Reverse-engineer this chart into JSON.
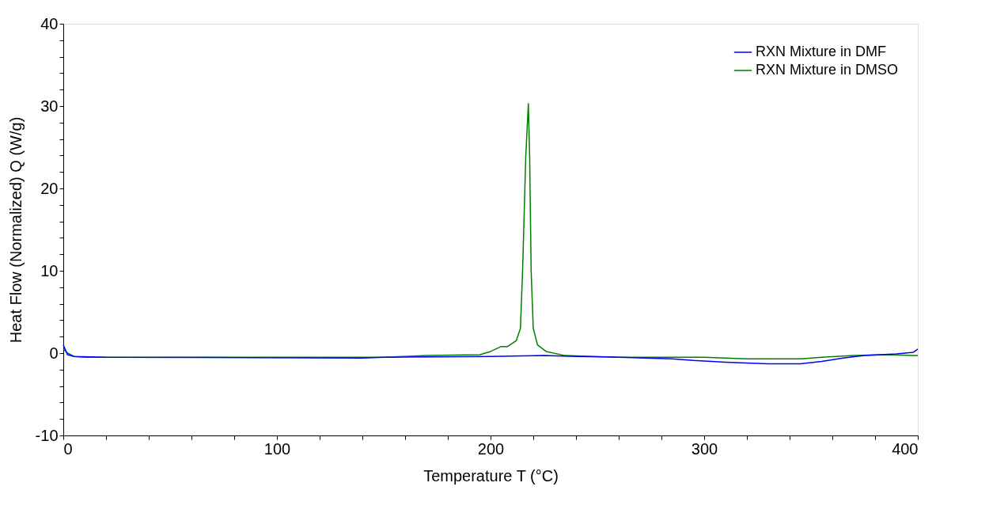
{
  "chart_data": {
    "type": "line",
    "xlabel": "Temperature  T  (°C)",
    "ylabel": "Heat Flow (Normalized)  Q  (W/g)",
    "xlim": [
      0,
      400
    ],
    "ylim": [
      -10,
      40
    ],
    "xticks": [
      0,
      {
        "value": 20,
        "label": null
      },
      {
        "value": 40,
        "label": null
      },
      {
        "value": 60,
        "label": null
      },
      {
        "value": 80,
        "label": null
      },
      100,
      {
        "value": 120,
        "label": null
      },
      {
        "value": 140,
        "label": null
      },
      {
        "value": 160,
        "label": null
      },
      {
        "value": 180,
        "label": null
      },
      200,
      {
        "value": 220,
        "label": null
      },
      {
        "value": 240,
        "label": null
      },
      {
        "value": 260,
        "label": null
      },
      {
        "value": 280,
        "label": null
      },
      300,
      {
        "value": 320,
        "label": null
      },
      {
        "value": 340,
        "label": null
      },
      {
        "value": 360,
        "label": null
      },
      {
        "value": 380,
        "label": null
      },
      400
    ],
    "yticks": [
      -10,
      {
        "value": -8,
        "label": null
      },
      {
        "value": -6,
        "label": null
      },
      {
        "value": -4,
        "label": null
      },
      {
        "value": -2,
        "label": null
      },
      0,
      {
        "value": 2,
        "label": null
      },
      {
        "value": 4,
        "label": null
      },
      {
        "value": 6,
        "label": null
      },
      {
        "value": 8,
        "label": null
      },
      10,
      {
        "value": 12,
        "label": null
      },
      {
        "value": 14,
        "label": null
      },
      {
        "value": 16,
        "label": null
      },
      {
        "value": 18,
        "label": null
      },
      20,
      {
        "value": 22,
        "label": null
      },
      {
        "value": 24,
        "label": null
      },
      {
        "value": 26,
        "label": null
      },
      {
        "value": 28,
        "label": null
      },
      30,
      {
        "value": 32,
        "label": null
      },
      {
        "value": 34,
        "label": null
      },
      {
        "value": 36,
        "label": null
      },
      {
        "value": 38,
        "label": null
      },
      40
    ],
    "grid": false,
    "legend": "top right",
    "marker": "none",
    "line_style": "solid",
    "series": [
      {
        "name": "RXN Mixture in DMF",
        "color": "#0000ff",
        "x": [
          0,
          2,
          5,
          20,
          140,
          150,
          200,
          225,
          240,
          260,
          285,
          295,
          310,
          330,
          345,
          355,
          365,
          375,
          390,
          398,
          400
        ],
        "values": [
          1.0,
          -0.2,
          -0.4,
          -0.5,
          -0.6,
          -0.5,
          -0.4,
          -0.3,
          -0.4,
          -0.5,
          -0.7,
          -0.9,
          -1.1,
          -1.3,
          -1.3,
          -1.0,
          -0.6,
          -0.3,
          -0.1,
          0.1,
          0.5
        ]
      },
      {
        "name": "RXN Mixture in DMSO",
        "color": "#008000",
        "x": [
          0,
          2,
          5,
          10,
          100,
          150,
          160,
          170,
          195,
          200,
          205,
          208,
          212,
          214,
          215,
          216.5,
          217.7,
          218.3,
          219,
          220,
          222,
          226,
          235,
          260,
          300,
          320,
          345,
          355,
          370,
          385,
          398,
          400
        ],
        "values": [
          0.5,
          0,
          -0.4,
          -0.5,
          -0.5,
          -0.5,
          -0.4,
          -0.3,
          -0.2,
          0.2,
          0.8,
          0.8,
          1.5,
          3,
          10,
          24,
          30.3,
          24,
          10,
          3,
          1,
          0.2,
          -0.3,
          -0.5,
          -0.5,
          -0.7,
          -0.7,
          -0.5,
          -0.3,
          -0.2,
          -0.3,
          -0.3
        ]
      }
    ]
  }
}
